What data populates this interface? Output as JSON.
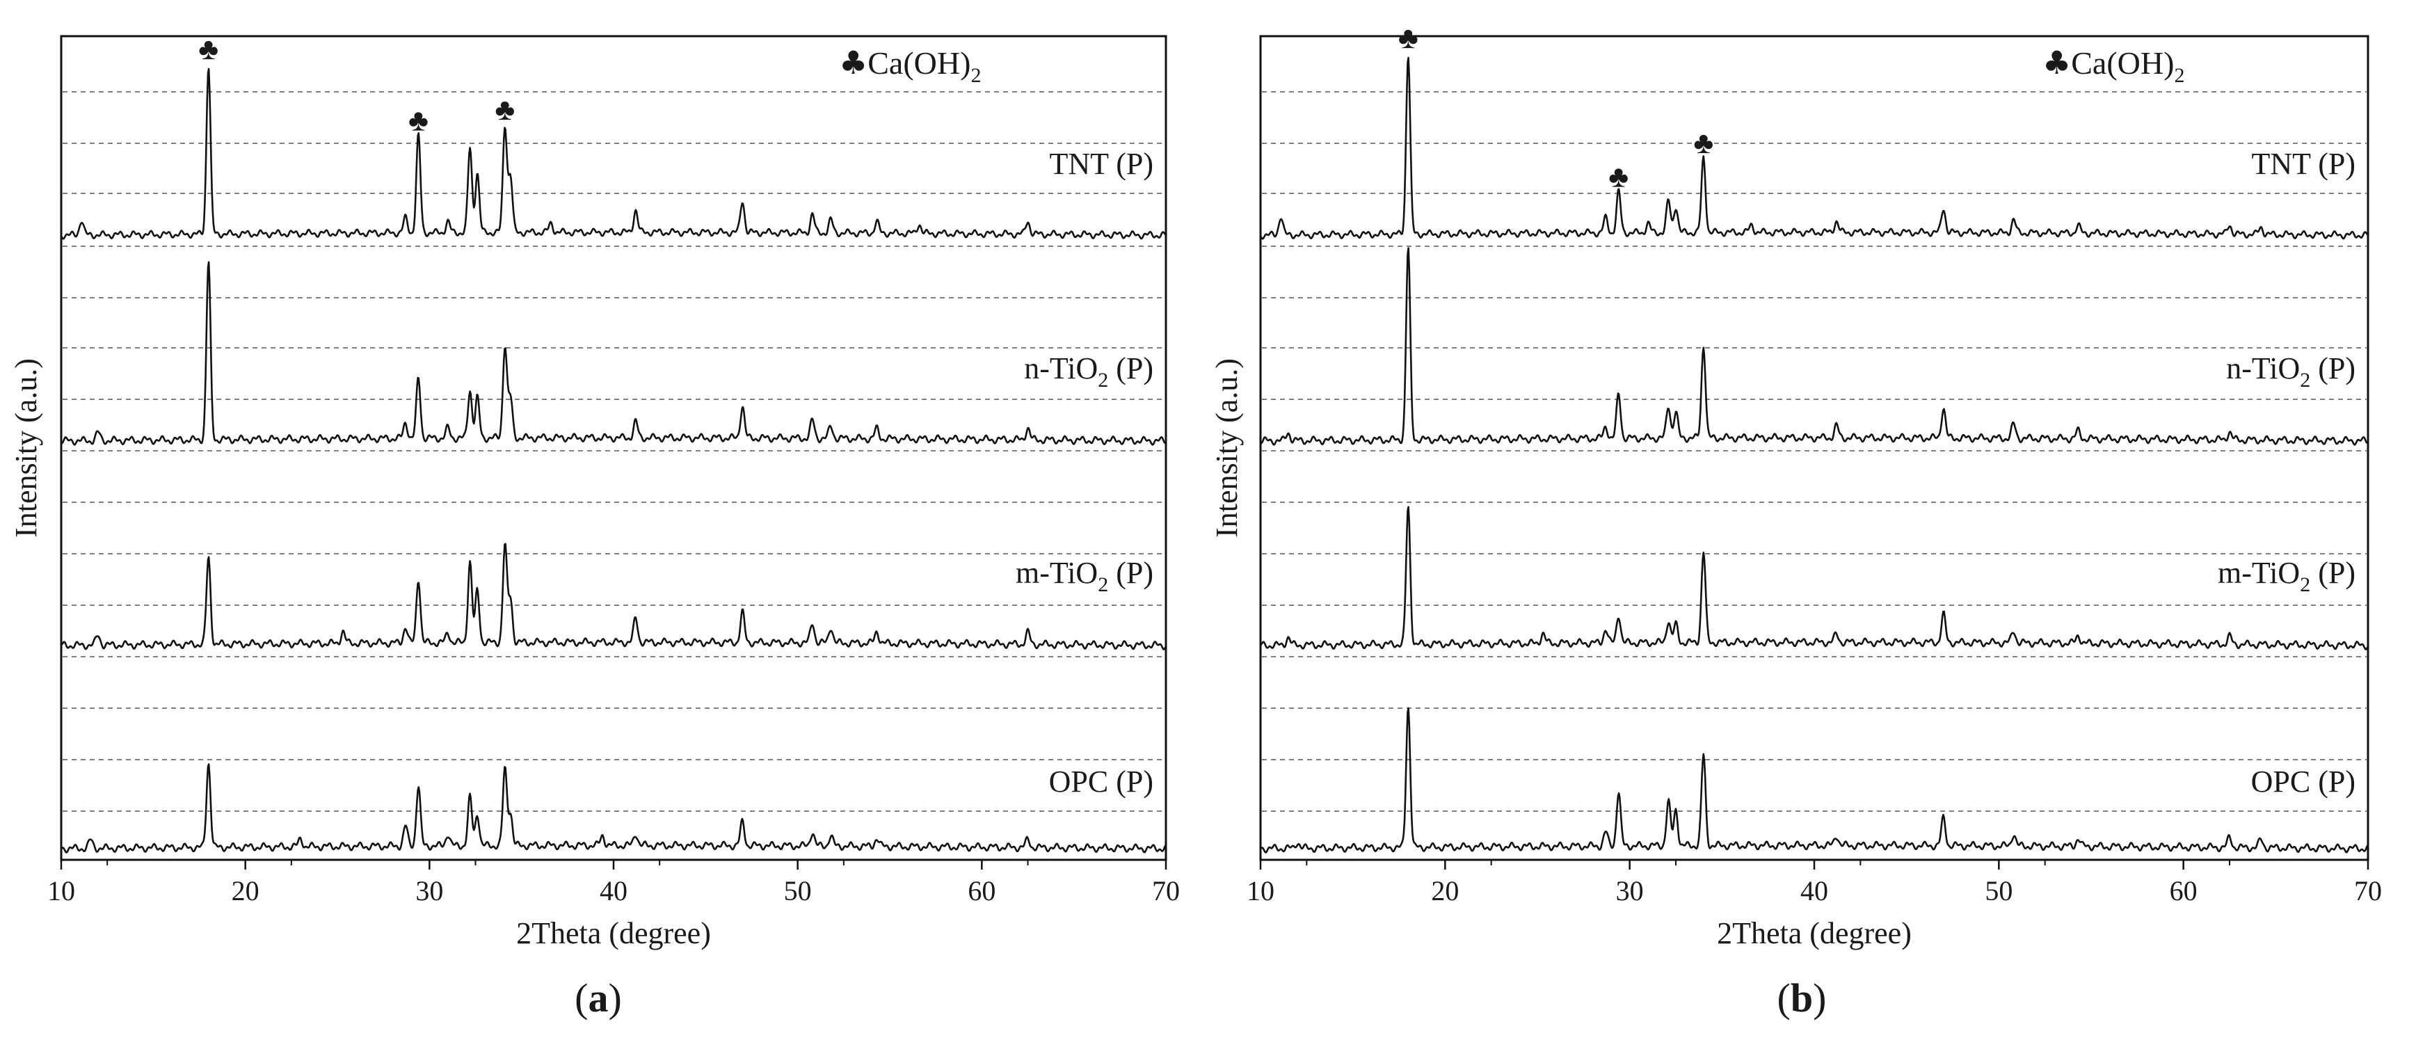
{
  "chart_data": [
    {
      "panel_label": "a",
      "type": "line",
      "title": "",
      "xlabel": "2Theta (degree)",
      "ylabel": "Intensity (a.u.)",
      "xlim": [
        10,
        70
      ],
      "xticks": [
        10,
        20,
        30,
        40,
        50,
        60,
        70
      ],
      "legend_marker": "♣",
      "legend_text": "Ca(OH)",
      "legend_sub": "2",
      "marker_positions": [
        18.0,
        29.4,
        34.1
      ],
      "grid": "dashed horizontal",
      "series": [
        {
          "name": "TNT (P)",
          "base": "TNT (",
          "sub": "",
          "tail": "P)",
          "peaks": [
            [
              11.1,
              0.08
            ],
            [
              18.0,
              0.9
            ],
            [
              28.7,
              0.08
            ],
            [
              29.4,
              0.52
            ],
            [
              31.0,
              0.06
            ],
            [
              32.2,
              0.45
            ],
            [
              32.6,
              0.32
            ],
            [
              34.1,
              0.57
            ],
            [
              34.4,
              0.3
            ],
            [
              36.6,
              0.05
            ],
            [
              41.2,
              0.12
            ],
            [
              47.0,
              0.17
            ],
            [
              50.8,
              0.1
            ],
            [
              51.8,
              0.07
            ],
            [
              54.3,
              0.06
            ],
            [
              56.6,
              0.05
            ],
            [
              62.5,
              0.07
            ]
          ]
        },
        {
          "name": "n-TiO2 (P)",
          "base": "n-TiO",
          "sub": "2",
          "tail": " (P)",
          "peaks": [
            [
              12.0,
              0.04
            ],
            [
              18.0,
              0.88
            ],
            [
              28.7,
              0.08
            ],
            [
              29.4,
              0.3
            ],
            [
              31.0,
              0.05
            ],
            [
              32.2,
              0.24
            ],
            [
              32.6,
              0.2
            ],
            [
              34.1,
              0.46
            ],
            [
              34.4,
              0.2
            ],
            [
              41.2,
              0.08
            ],
            [
              47.0,
              0.16
            ],
            [
              50.8,
              0.09
            ],
            [
              51.8,
              0.06
            ],
            [
              54.3,
              0.05
            ],
            [
              62.5,
              0.06
            ]
          ]
        },
        {
          "name": "m-TiO2 (P)",
          "base": "m-TiO",
          "sub": "2",
          "tail": " (P)",
          "peaks": [
            [
              12.0,
              0.05
            ],
            [
              18.0,
              0.43
            ],
            [
              25.3,
              0.06
            ],
            [
              28.7,
              0.08
            ],
            [
              29.4,
              0.32
            ],
            [
              31.0,
              0.05
            ],
            [
              32.2,
              0.4
            ],
            [
              32.6,
              0.26
            ],
            [
              34.1,
              0.48
            ],
            [
              34.4,
              0.22
            ],
            [
              41.2,
              0.12
            ],
            [
              47.0,
              0.15
            ],
            [
              50.8,
              0.1
            ],
            [
              51.8,
              0.08
            ],
            [
              54.3,
              0.06
            ],
            [
              62.5,
              0.06
            ]
          ]
        },
        {
          "name": "OPC (P)",
          "base": "OPC (P)",
          "sub": "",
          "tail": "",
          "peaks": [
            [
              11.6,
              0.04
            ],
            [
              18.0,
              0.42
            ],
            [
              23.0,
              0.04
            ],
            [
              28.7,
              0.1
            ],
            [
              29.4,
              0.3
            ],
            [
              31.0,
              0.06
            ],
            [
              32.2,
              0.24
            ],
            [
              32.6,
              0.16
            ],
            [
              34.1,
              0.38
            ],
            [
              34.4,
              0.16
            ],
            [
              39.4,
              0.05
            ],
            [
              41.2,
              0.06
            ],
            [
              47.0,
              0.12
            ],
            [
              50.8,
              0.07
            ],
            [
              51.8,
              0.05
            ],
            [
              54.3,
              0.04
            ],
            [
              62.5,
              0.04
            ]
          ]
        }
      ]
    },
    {
      "panel_label": "b",
      "type": "line",
      "title": "",
      "xlabel": "2Theta (degree)",
      "ylabel": "Intensity (a.u.)",
      "xlim": [
        10,
        70
      ],
      "xticks": [
        10,
        20,
        30,
        40,
        50,
        60,
        70
      ],
      "legend_marker": "♣",
      "legend_text": "Ca(OH)",
      "legend_sub": "2",
      "marker_positions": [
        18.0,
        29.4,
        34.0
      ],
      "grid": "dashed horizontal",
      "series": [
        {
          "name": "TNT (P)",
          "base": "TNT (",
          "sub": "",
          "tail": "P)",
          "peaks": [
            [
              11.1,
              0.1
            ],
            [
              18.0,
              0.96
            ],
            [
              28.7,
              0.08
            ],
            [
              29.4,
              0.22
            ],
            [
              31.0,
              0.05
            ],
            [
              32.1,
              0.17
            ],
            [
              32.5,
              0.14
            ],
            [
              34.0,
              0.4
            ],
            [
              36.6,
              0.04
            ],
            [
              41.2,
              0.06
            ],
            [
              47.0,
              0.13
            ],
            [
              50.8,
              0.07
            ],
            [
              54.3,
              0.04
            ],
            [
              62.5,
              0.05
            ],
            [
              64.2,
              0.04
            ]
          ]
        },
        {
          "name": "n-TiO2 (P)",
          "base": "n-TiO",
          "sub": "2",
          "tail": " (P)",
          "peaks": [
            [
              11.5,
              0.04
            ],
            [
              18.0,
              0.95
            ],
            [
              28.7,
              0.06
            ],
            [
              29.4,
              0.22
            ],
            [
              32.1,
              0.16
            ],
            [
              32.5,
              0.13
            ],
            [
              34.0,
              0.46
            ],
            [
              41.2,
              0.06
            ],
            [
              47.0,
              0.15
            ],
            [
              50.8,
              0.07
            ],
            [
              54.3,
              0.04
            ],
            [
              62.5,
              0.04
            ]
          ]
        },
        {
          "name": "m-TiO2 (P)",
          "base": "m-TiO",
          "sub": "2",
          "tail": " (P)",
          "peaks": [
            [
              11.5,
              0.04
            ],
            [
              18.0,
              0.68
            ],
            [
              25.3,
              0.05
            ],
            [
              28.7,
              0.07
            ],
            [
              29.4,
              0.14
            ],
            [
              32.1,
              0.11
            ],
            [
              32.5,
              0.09
            ],
            [
              34.0,
              0.45
            ],
            [
              41.2,
              0.04
            ],
            [
              47.0,
              0.14
            ],
            [
              50.8,
              0.06
            ],
            [
              54.3,
              0.04
            ],
            [
              62.5,
              0.04
            ]
          ]
        },
        {
          "name": "OPC (P)",
          "base": "OPC (P)",
          "sub": "",
          "tail": "",
          "peaks": [
            [
              12.0,
              0.03
            ],
            [
              18.0,
              0.7
            ],
            [
              28.7,
              0.07
            ],
            [
              29.4,
              0.27
            ],
            [
              32.1,
              0.22
            ],
            [
              32.5,
              0.18
            ],
            [
              34.0,
              0.45
            ],
            [
              41.2,
              0.05
            ],
            [
              47.0,
              0.14
            ],
            [
              50.8,
              0.06
            ],
            [
              54.3,
              0.04
            ],
            [
              62.5,
              0.05
            ],
            [
              64.2,
              0.04
            ]
          ]
        }
      ]
    }
  ]
}
